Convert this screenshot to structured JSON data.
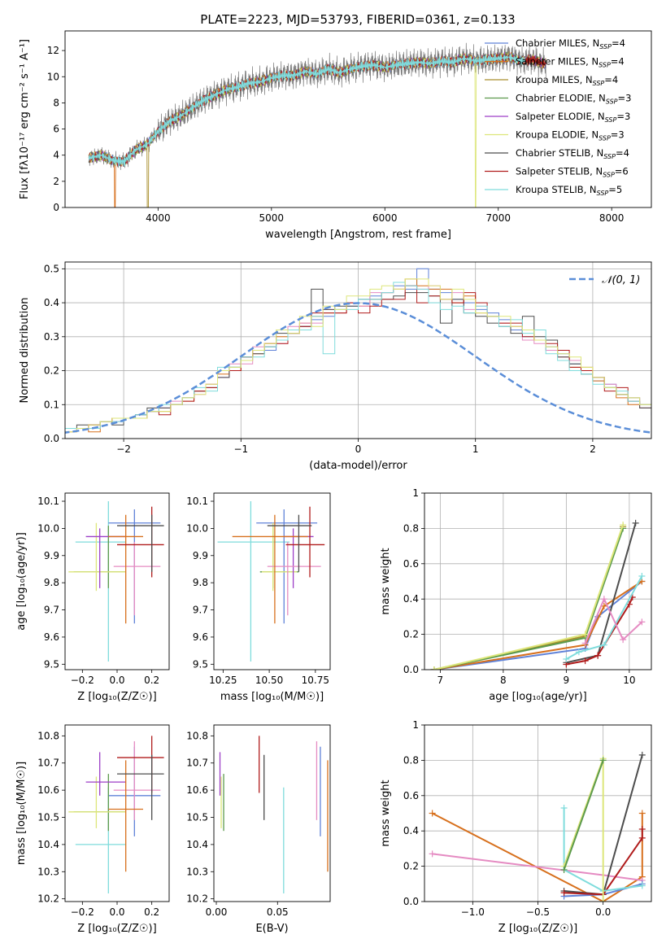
{
  "figure_title": "PLATE=2223, MJD=53793, FIBERID=0361, z=0.133",
  "chart_data": [
    {
      "id": "spectrum",
      "type": "line",
      "xlabel": "wavelength [Angstrom, rest frame]",
      "ylabel": "Flux [fλ10⁻¹⁷ erg cm⁻² s⁻¹ A⁻¹]",
      "xlim": [
        3180,
        8350
      ],
      "ylim": [
        0,
        13.5
      ],
      "xticks": [
        4000,
        5000,
        6000,
        7000,
        8000
      ],
      "yticks": [
        0,
        2,
        4,
        6,
        8,
        10,
        12
      ],
      "grid": false,
      "legend_position": "upper-right",
      "data_grid": [
        3400,
        3500,
        3600,
        3700,
        3800,
        3900,
        4000,
        4100,
        4200,
        4300,
        4400,
        4500,
        4600,
        4700,
        4800,
        4900,
        5000,
        5100,
        5200,
        5300,
        5400,
        5500,
        5600,
        5700,
        5800,
        5900,
        6000,
        6100,
        6200,
        6300,
        6400,
        6500,
        6600,
        6700,
        6800,
        6900,
        7000,
        7100,
        7200,
        7300,
        7400
      ],
      "data_flux": [
        3.8,
        4.0,
        3.6,
        3.5,
        4.4,
        4.8,
        5.8,
        6.6,
        7.0,
        7.6,
        8.2,
        8.6,
        9.0,
        9.2,
        9.5,
        9.6,
        9.9,
        10.1,
        10.1,
        10.4,
        10.2,
        10.6,
        10.3,
        10.6,
        10.8,
        10.9,
        10.7,
        10.9,
        11.0,
        11.1,
        11.0,
        11.2,
        11.1,
        11.4,
        11.2,
        11.3,
        11.4,
        11.5,
        11.2,
        11.3,
        11.0
      ],
      "series": [
        {
          "name": "Chabrier MILES, N_SSP=4",
          "color": "#5f82d8"
        },
        {
          "name": "Salpeter MILES, N_SSP=4",
          "color": "#d7701d"
        },
        {
          "name": "Kroupa MILES, N_SSP=4",
          "color": "#a98f2d"
        },
        {
          "name": "Chabrier ELODIE, N_SSP=3",
          "color": "#5c9a4c"
        },
        {
          "name": "Salpeter ELODIE, N_SSP=3",
          "color": "#9d3fc7"
        },
        {
          "name": "Kroupa ELODIE, N_SSP=3",
          "color": "#dde67a"
        },
        {
          "name": "Chabrier STELIB, N_SSP=4",
          "color": "#4d4d4d"
        },
        {
          "name": "Salpeter STELIB, N_SSP=6",
          "color": "#b01c1c"
        },
        {
          "name": "Kroupa STELIB, N_SSP=5",
          "color": "#7fdcdc"
        }
      ]
    },
    {
      "id": "residuals",
      "type": "line",
      "xlabel": "(data-model)/error",
      "ylabel": "Normed distribution",
      "xlim": [
        -2.5,
        2.5
      ],
      "ylim": [
        0,
        0.52
      ],
      "xticks": [
        -2,
        -1,
        0,
        1,
        2
      ],
      "yticks": [
        0.0,
        0.1,
        0.2,
        0.3,
        0.4,
        0.5
      ],
      "grid": true,
      "legend_position": "upper-right",
      "legend": [
        "𝒩(0, 1)"
      ],
      "bin_width": 0.1,
      "bins_start": -2.5,
      "series": [
        {
          "color": "#5f82d8",
          "values": [
            0.03,
            0.03,
            0.03,
            0.05,
            0.05,
            0.06,
            0.07,
            0.08,
            0.09,
            0.1,
            0.12,
            0.14,
            0.16,
            0.18,
            0.21,
            0.23,
            0.26,
            0.26,
            0.29,
            0.31,
            0.33,
            0.35,
            0.36,
            0.38,
            0.39,
            0.41,
            0.42,
            0.43,
            0.45,
            0.44,
            0.5,
            0.44,
            0.43,
            0.41,
            0.4,
            0.38,
            0.37,
            0.35,
            0.32,
            0.3,
            0.29,
            0.27,
            0.25,
            0.22,
            0.2,
            0.17,
            0.16,
            0.13,
            0.11,
            0.09,
            0.07
          ]
        },
        {
          "color": "#d7701d",
          "values": [
            0.02,
            0.03,
            0.02,
            0.05,
            0.06,
            0.06,
            0.06,
            0.08,
            0.08,
            0.1,
            0.11,
            0.14,
            0.16,
            0.19,
            0.2,
            0.24,
            0.25,
            0.28,
            0.3,
            0.32,
            0.34,
            0.36,
            0.37,
            0.37,
            0.4,
            0.39,
            0.41,
            0.43,
            0.44,
            0.47,
            0.45,
            0.44,
            0.44,
            0.4,
            0.42,
            0.37,
            0.36,
            0.34,
            0.33,
            0.32,
            0.29,
            0.26,
            0.24,
            0.21,
            0.21,
            0.17,
            0.15,
            0.12,
            0.1,
            0.09,
            0.08
          ]
        },
        {
          "color": "#e58bc2",
          "values": [
            0.03,
            0.03,
            0.04,
            0.05,
            0.05,
            0.06,
            0.07,
            0.08,
            0.09,
            0.11,
            0.12,
            0.13,
            0.16,
            0.18,
            0.22,
            0.22,
            0.27,
            0.27,
            0.28,
            0.33,
            0.34,
            0.34,
            0.38,
            0.37,
            0.4,
            0.39,
            0.43,
            0.43,
            0.44,
            0.45,
            0.44,
            0.45,
            0.41,
            0.43,
            0.38,
            0.39,
            0.36,
            0.34,
            0.33,
            0.29,
            0.28,
            0.26,
            0.24,
            0.23,
            0.2,
            0.18,
            0.16,
            0.13,
            0.12,
            0.09,
            0.08
          ]
        },
        {
          "color": "#4d4d4d",
          "values": [
            0.03,
            0.04,
            0.04,
            0.05,
            0.04,
            0.06,
            0.07,
            0.09,
            0.09,
            0.1,
            0.12,
            0.14,
            0.15,
            0.18,
            0.21,
            0.24,
            0.25,
            0.27,
            0.31,
            0.31,
            0.33,
            0.44,
            0.38,
            0.39,
            0.39,
            0.41,
            0.41,
            0.41,
            0.42,
            0.43,
            0.43,
            0.42,
            0.34,
            0.41,
            0.37,
            0.36,
            0.34,
            0.33,
            0.31,
            0.36,
            0.3,
            0.29,
            0.24,
            0.22,
            0.19,
            0.18,
            0.15,
            0.13,
            0.12,
            0.09,
            0.08
          ]
        },
        {
          "color": "#b01c1c",
          "values": [
            0.03,
            0.03,
            0.04,
            0.05,
            0.06,
            0.06,
            0.06,
            0.08,
            0.07,
            0.1,
            0.11,
            0.14,
            0.15,
            0.2,
            0.2,
            0.24,
            0.26,
            0.28,
            0.28,
            0.31,
            0.33,
            0.37,
            0.37,
            0.37,
            0.4,
            0.37,
            0.39,
            0.41,
            0.41,
            0.45,
            0.4,
            0.42,
            0.41,
            0.4,
            0.43,
            0.4,
            0.36,
            0.34,
            0.34,
            0.3,
            0.29,
            0.28,
            0.26,
            0.21,
            0.2,
            0.18,
            0.14,
            0.15,
            0.11,
            0.1,
            0.08
          ]
        },
        {
          "color": "#7fdcdc",
          "values": [
            0.03,
            0.03,
            0.03,
            0.05,
            0.05,
            0.06,
            0.07,
            0.08,
            0.1,
            0.1,
            0.12,
            0.15,
            0.14,
            0.21,
            0.21,
            0.24,
            0.24,
            0.27,
            0.29,
            0.32,
            0.32,
            0.36,
            0.25,
            0.38,
            0.38,
            0.41,
            0.41,
            0.43,
            0.46,
            0.45,
            0.44,
            0.4,
            0.38,
            0.39,
            0.37,
            0.39,
            0.36,
            0.33,
            0.35,
            0.31,
            0.32,
            0.25,
            0.23,
            0.2,
            0.19,
            0.16,
            0.15,
            0.14,
            0.11,
            0.1,
            0.08
          ]
        },
        {
          "color": "#dde67a",
          "values": [
            0.02,
            0.03,
            0.04,
            0.05,
            0.06,
            0.06,
            0.06,
            0.08,
            0.08,
            0.1,
            0.12,
            0.13,
            0.16,
            0.2,
            0.21,
            0.23,
            0.26,
            0.28,
            0.32,
            0.31,
            0.36,
            0.33,
            0.39,
            0.38,
            0.42,
            0.42,
            0.44,
            0.45,
            0.44,
            0.47,
            0.47,
            0.45,
            0.41,
            0.44,
            0.41,
            0.37,
            0.36,
            0.36,
            0.33,
            0.32,
            0.29,
            0.27,
            0.25,
            0.24,
            0.21,
            0.18,
            0.15,
            0.13,
            0.12,
            0.1,
            0.08
          ]
        }
      ],
      "gaussian": {
        "color": "#5b8ed8",
        "mean": 0,
        "sigma": 1
      }
    },
    {
      "id": "age-vs-z",
      "type": "scatter",
      "xlabel": "Z [log₁₀(Z/Z☉)]",
      "ylabel": "age  [log₁₀(age/yr)]",
      "xlim": [
        -0.3,
        0.3
      ],
      "ylim": [
        9.48,
        10.13
      ],
      "xticks": [
        "-0.2",
        "0.0",
        "0.2"
      ],
      "yticks": [
        9.5,
        9.6,
        9.7,
        9.8,
        9.9,
        10.0,
        10.1
      ]
    },
    {
      "id": "age-vs-mass",
      "type": "scatter",
      "xlabel": "mass [log₁₀(M/M☉)]",
      "ylabel": "",
      "xlim": [
        10.2,
        10.83
      ],
      "ylim": [
        9.48,
        10.13
      ],
      "xticks": [
        "10.25",
        "10.50",
        "10.75"
      ],
      "yticks": [
        9.5,
        9.6,
        9.7,
        9.8,
        9.9,
        10.0,
        10.1
      ]
    },
    {
      "id": "weight-vs-age",
      "type": "line",
      "xlabel": "age  [log₁₀(age/yr)]",
      "ylabel": "mass weight",
      "xlim": [
        6.75,
        10.35
      ],
      "ylim": [
        0,
        1.0
      ],
      "xticks": [
        7,
        8,
        9,
        10
      ],
      "yticks": [
        0.0,
        0.2,
        0.4,
        0.6,
        0.8,
        1.0
      ],
      "grid": true,
      "series": [
        {
          "color": "#5f82d8",
          "x": [
            6.9,
            9.3,
            9.5,
            10.2
          ],
          "y": [
            0.0,
            0.12,
            0.3,
            0.5
          ]
        },
        {
          "color": "#d7701d",
          "x": [
            6.9,
            9.3,
            9.6,
            10.2
          ],
          "y": [
            0.0,
            0.14,
            0.36,
            0.5
          ]
        },
        {
          "color": "#a98f2d",
          "x": [
            6.9,
            9.3,
            9.9
          ],
          "y": [
            0.0,
            0.19,
            0.81
          ]
        },
        {
          "color": "#5c9a4c",
          "x": [
            6.9,
            9.3,
            9.9
          ],
          "y": [
            0.0,
            0.18,
            0.8
          ]
        },
        {
          "color": "#dde67a",
          "x": [
            6.9,
            9.3,
            9.9
          ],
          "y": [
            0.0,
            0.2,
            0.82
          ]
        },
        {
          "color": "#4d4d4d",
          "x": [
            9.0,
            9.5,
            10.1
          ],
          "y": [
            0.04,
            0.08,
            0.83
          ]
        },
        {
          "color": "#b01c1c",
          "x": [
            9.0,
            9.3,
            9.5,
            10.0,
            10.05
          ],
          "y": [
            0.03,
            0.05,
            0.08,
            0.37,
            0.41
          ]
        },
        {
          "color": "#7fdcdc",
          "x": [
            9.0,
            9.2,
            9.6,
            10.2
          ],
          "y": [
            0.06,
            0.1,
            0.14,
            0.53
          ]
        },
        {
          "color": "#e58bc2",
          "x": [
            9.3,
            9.6,
            9.9,
            10.2
          ],
          "y": [
            0.15,
            0.4,
            0.17,
            0.27
          ]
        }
      ]
    },
    {
      "id": "mass-vs-z",
      "type": "scatter",
      "xlabel": "Z [log₁₀(Z/Z☉)]",
      "ylabel": "mass [log₁₀(M/M☉)]",
      "xlim": [
        -0.3,
        0.3
      ],
      "ylim": [
        10.19,
        10.84
      ],
      "xticks": [
        "-0.2",
        "0.0",
        "0.2"
      ],
      "yticks": [
        10.2,
        10.3,
        10.4,
        10.5,
        10.6,
        10.7,
        10.8
      ]
    },
    {
      "id": "mass-vs-ebv",
      "type": "scatter",
      "xlabel": "E(B-V)",
      "ylabel": "",
      "xlim": [
        -0.002,
        0.093
      ],
      "ylim": [
        10.19,
        10.84
      ],
      "xticks": [
        "0.00",
        "0.05"
      ],
      "yticks": [
        10.2,
        10.3,
        10.4,
        10.5,
        10.6,
        10.7,
        10.8
      ]
    },
    {
      "id": "weight-vs-z",
      "type": "line",
      "xlabel": "Z [log₁₀(Z/Z☉)]",
      "ylabel": "mass weight",
      "xlim": [
        -1.37,
        0.37
      ],
      "ylim": [
        0,
        1.0
      ],
      "xticks": [
        "-1.0",
        "-0.5",
        "0.0"
      ],
      "yticks": [
        0.0,
        0.2,
        0.4,
        0.6,
        0.8,
        1.0
      ],
      "grid": true,
      "series": [
        {
          "color": "#d7701d",
          "x": [
            -1.31,
            0.0,
            0.3,
            0.3
          ],
          "y": [
            0.5,
            0.0,
            0.14,
            0.5
          ]
        },
        {
          "color": "#e58bc2",
          "x": [
            -1.31,
            0.0,
            0.3
          ],
          "y": [
            0.27,
            0.15,
            0.12
          ]
        },
        {
          "color": "#5f82d8",
          "x": [
            -0.3,
            0.0,
            0.3
          ],
          "y": [
            0.03,
            0.04,
            0.1
          ]
        },
        {
          "color": "#4d4d4d",
          "x": [
            -0.3,
            0.0,
            0.3
          ],
          "y": [
            0.06,
            0.04,
            0.83
          ]
        },
        {
          "color": "#b01c1c",
          "x": [
            -0.3,
            0.0,
            0.3,
            0.3
          ],
          "y": [
            0.05,
            0.04,
            0.36,
            0.41
          ]
        },
        {
          "color": "#7fdcdc",
          "x": [
            -0.3,
            -0.3,
            0.0,
            0.3
          ],
          "y": [
            0.53,
            0.18,
            0.06,
            0.09
          ]
        },
        {
          "color": "#dde67a",
          "x": [
            -0.3,
            0.0,
            0.0
          ],
          "y": [
            0.2,
            0.81,
            0.0
          ]
        },
        {
          "color": "#5c9a4c",
          "x": [
            -0.3,
            0.0
          ],
          "y": [
            0.18,
            0.8
          ]
        }
      ]
    }
  ],
  "errorbars": {
    "colors": [
      "#7fdcdc",
      "#5f82d8",
      "#5c9a4c",
      "#dde67a",
      "#9d3fc7",
      "#e58bc2",
      "#d7701d",
      "#b01c1c",
      "#4d4d4d"
    ],
    "ebv": [
      0.055,
      0.085,
      0.006,
      0.004,
      0.003,
      0.082,
      0.091,
      0.035,
      0.039
    ],
    "Z": [
      -0.05,
      0.1,
      -0.05,
      -0.12,
      -0.1,
      0.1,
      0.05,
      0.2,
      0.2
    ],
    "Z_lo": [
      -0.24,
      -0.05,
      -0.25,
      -0.28,
      -0.18,
      -0.02,
      -0.05,
      0.0,
      0.0
    ],
    "Z_hi": [
      0.05,
      0.25,
      0.05,
      0.05,
      0.05,
      0.25,
      0.15,
      0.27,
      0.27
    ],
    "age": [
      9.95,
      10.02,
      9.84,
      9.84,
      9.97,
      9.86,
      9.97,
      9.94,
      10.01
    ],
    "age_lo": [
      9.51,
      9.65,
      9.78,
      9.77,
      9.78,
      9.68,
      9.65,
      9.82,
      9.84
    ],
    "age_hi": [
      10.1,
      10.07,
      10.01,
      10.02,
      10.0,
      9.95,
      10.05,
      10.08,
      10.05
    ],
    "mass": [
      10.4,
      10.58,
      10.52,
      10.52,
      10.63,
      10.6,
      10.53,
      10.72,
      10.66
    ],
    "mass_lo": [
      10.22,
      10.43,
      10.45,
      10.46,
      10.58,
      10.49,
      10.3,
      10.59,
      10.49
    ],
    "mass_hi": [
      10.61,
      10.76,
      10.66,
      10.65,
      10.74,
      10.78,
      10.71,
      10.8,
      10.73
    ]
  }
}
